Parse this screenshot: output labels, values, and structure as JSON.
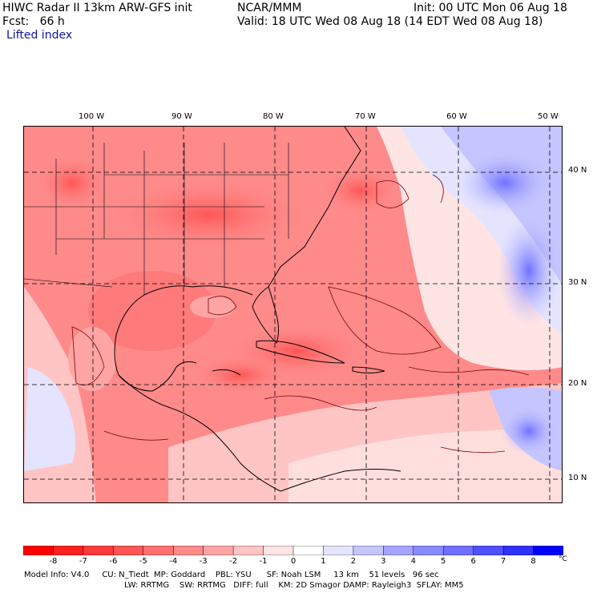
{
  "header": {
    "model_title": "HIWC Radar II 13km ARW-GFS init",
    "org": "NCAR/MMM",
    "init": "Init: 00 UTC Mon 06 Aug 18",
    "fcst": "Fcst:   66 h",
    "valid": "Valid: 18 UTC Wed 08 Aug 18 (14 EDT Wed 08 Aug 18)",
    "field": "Lifted index"
  },
  "map": {
    "lon_labels": [
      "100 W",
      "90 W",
      "80 W",
      "70 W",
      "60 W",
      "50 W"
    ],
    "lat_labels": [
      "40 N",
      "30 N",
      "20 N",
      "10 N"
    ]
  },
  "colorbar": {
    "labels": [
      "-8",
      "-7",
      "-6",
      "-5",
      "-4",
      "-3",
      "-2",
      "-1",
      "0",
      "1",
      "2",
      "3",
      "4",
      "5",
      "6",
      "7",
      "8"
    ],
    "unit": "°C",
    "colors": [
      "#ff0000",
      "#ff2020",
      "#ff3b3b",
      "#ff5555",
      "#ff7070",
      "#ff8a8a",
      "#ffa5a5",
      "#ffc5c5",
      "#ffe4e4",
      "#ffffff",
      "#e4e4ff",
      "#c5c5ff",
      "#a5a5ff",
      "#8a8aff",
      "#7070ff",
      "#5050ff",
      "#3030ff",
      "#0000ff"
    ]
  },
  "footer": {
    "line1": "Model Info: V4.0     CU: N_Tiedt  MP: Goddard    PBL: YSU      SF: Noah LSM     13 km    51 levels   96 sec",
    "line2": "LW: RRTMG    SW: RRTMG   DIFF: full    KM: 2D Smagor DAMP: Rayleigh3  SFLAY: MM5"
  }
}
